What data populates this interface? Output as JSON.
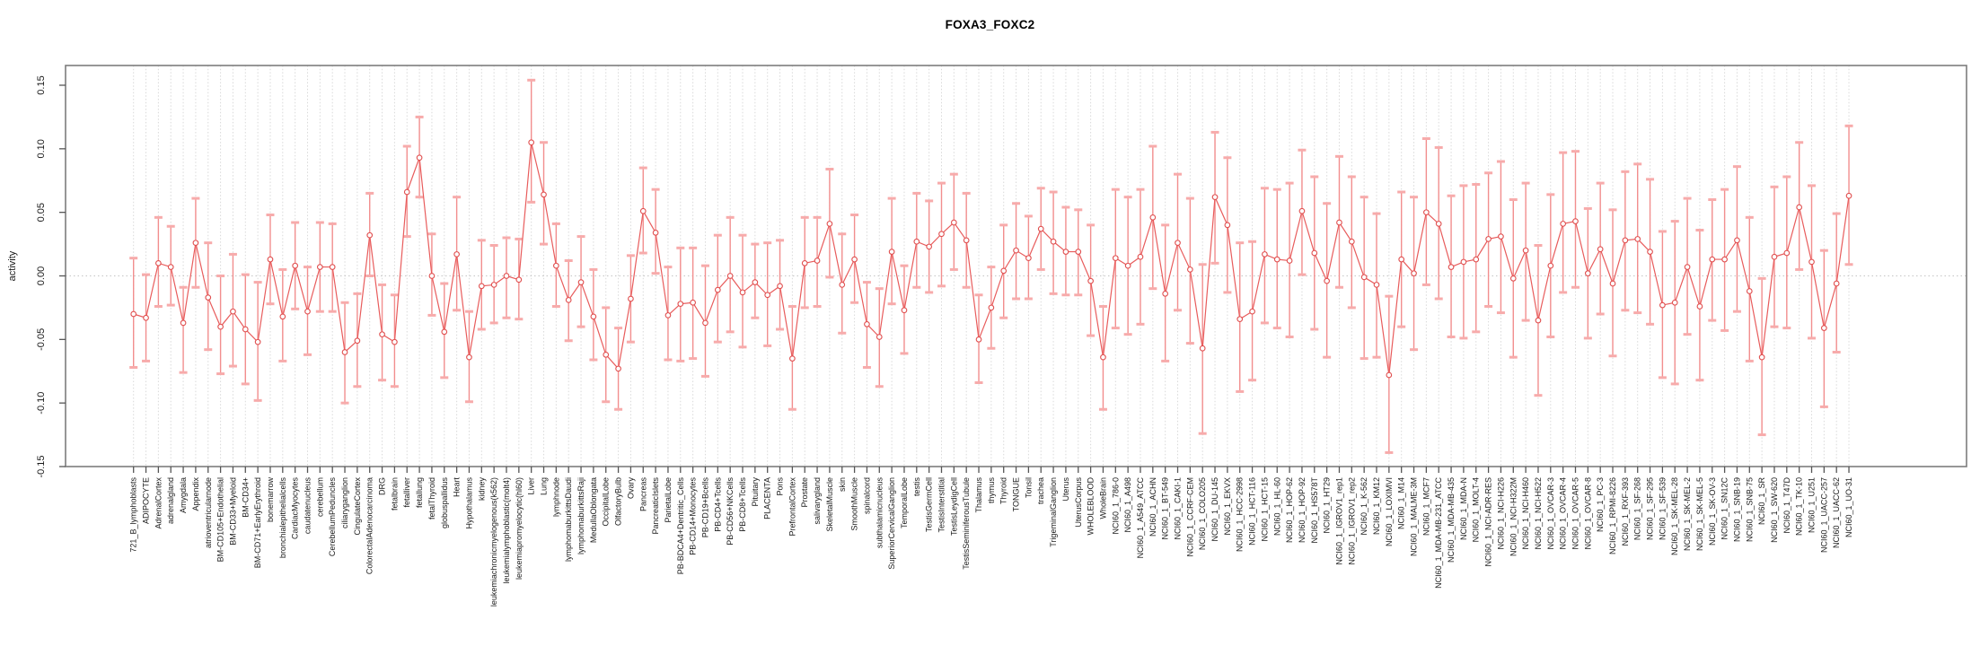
{
  "title": "FOXA3_FOXC2",
  "chart_data": {
    "type": "line",
    "title": "FOXA3_FOXC2",
    "xlabel": "",
    "ylabel": "activity",
    "ylim": [
      -0.15,
      0.165
    ],
    "grid": "vertical-dashed-per-category, dotted-zero-line",
    "legend": "none",
    "marker": "open-circle",
    "error_bars": true,
    "ytick_labels": [
      "0.15",
      "0.10",
      "0.05",
      "0.00",
      "-0.05",
      "-0.10",
      "-0.15"
    ],
    "colors": {
      "series": "#e85c5c",
      "marker": "#e04f4f",
      "error_stem": "#f28e8e",
      "error_cap": "#f7abab",
      "grid": "#d9d9d9",
      "zero_line": "#c4c4c4",
      "box": "#7d7d7d",
      "tick": "#555555"
    },
    "categories": [
      "721_B_lymphoblasts",
      "ADIPOCYTE",
      "AdrenalCortex",
      "adrenalgland",
      "Amygdala",
      "Appendix",
      "atrioventricularnode",
      "BM-CD105+Endothelial",
      "BM-CD33+Myeloid",
      "BM-CD34+",
      "BM-CD71+EarlyErythroid",
      "bonemarrow",
      "bronchialepithelialcells",
      "CardiacMyocytes",
      "caudatenucleus",
      "cerebellum",
      "CerebellumPeduncles",
      "ciliaryganglion",
      "CingulateCortex",
      "ColorectalAdenocarcinoma",
      "DRG",
      "fetalbrain",
      "fetalliver",
      "fetallung",
      "fetalThyroid",
      "globuspallidus",
      "Heart",
      "Hypothalamus",
      "kidney",
      "leukemiachronicmyelogenous(k562)",
      "leukemialymphoblastic(molt4)",
      "leukemiapromyelocytic(hl60)",
      "Liver",
      "Lung",
      "lymphnode",
      "lymphomaburkittsDaudi",
      "lymphomaburkittsRaji",
      "MedullaOblongata",
      "OccipitalLobe",
      "OlfactoryBulb",
      "Ovary",
      "Pancreas",
      "PancreaticIslets",
      "ParietalLobe",
      "PB-BDCA4+Dentritic_Cells",
      "PB-CD14+Monocytes",
      "PB-CD19+Bcells",
      "PB-CD4+Tcells",
      "PB-CD56+NKCells",
      "PB-CD8+Tcells",
      "Pituitary",
      "PLACENTA",
      "Pons",
      "PrefrontalCortex",
      "Prostate",
      "salivarygland",
      "SkeletalMuscle",
      "skin",
      "SmoothMuscle",
      "spinalcord",
      "subthalamicnucleus",
      "SuperiorCervicalGanglion",
      "TemporalLobe",
      "testis",
      "TestisGermCell",
      "TestisInterstitial",
      "TestisLeydigCell",
      "TestisSeminiferousTubule",
      "Thalamus",
      "thymus",
      "Thyroid",
      "TONGUE",
      "Tonsil",
      "trachea",
      "TrigeminalGanglion",
      "Uterus",
      "UterusCorpus",
      "WHOLEBLOOD",
      "WholeBrain",
      "NCI60_1_786-0",
      "NCI60_1_A498",
      "NCI60_1_A549_ATCC",
      "NCI60_1_ACHN",
      "NCI60_1_BT-549",
      "NCI60_1_CAKI-1",
      "NCI60_1_CCRF-CEM",
      "NCI60_1_COLO205",
      "NCI60_1_DU-145",
      "NCI60_1_EKVX",
      "NCI60_1_HCC-2998",
      "NCI60_1_HCT-116",
      "NCI60_1_HCT-15",
      "NCI60_1_HL-60",
      "NCI60_1_HOP-62",
      "NCI60_1_HOP-92",
      "NCI60_1_HS578T",
      "NCI60_1_HT29",
      "NCI60_1_IGROV1_rep1",
      "NCI60_1_IGROV1_rep2",
      "NCI60_1_K-562",
      "NCI60_1_KM12",
      "NCI60_1_LOXIMVI",
      "NCI60_1_M14",
      "NCI60_1_MALME-3M",
      "NCI60_1_MCF7",
      "NCI60_1_MDA-MB-231_ATCC",
      "NCI60_1_MDA-MB-435",
      "NCI60_1_MDA-N",
      "NCI60_1_MOLT-4",
      "NCI60_1_NCI-ADR-RES",
      "NCI60_1_NCI-H226",
      "NCI60_1_NCI-H322M",
      "NCI60_1_NCI-H460",
      "NCI60_1_NCI-H522",
      "NCI60_1_OVCAR-3",
      "NCI60_1_OVCAR-4",
      "NCI60_1_OVCAR-5",
      "NCI60_1_OVCAR-8",
      "NCI60_1_PC-3",
      "NCI60_1_RPMI-8226",
      "NCI60_1_RXF-393",
      "NCI60_1_SF-268",
      "NCI60_1_SF-295",
      "NCI60_1_SF-539",
      "NCI60_1_SK-MEL-28",
      "NCI60_1_SK-MEL-2",
      "NCI60_1_SK-MEL-5",
      "NCI60_1_SK-OV-3",
      "NCI60_1_SN12C",
      "NCI60_1_SNB-19",
      "NCI60_1_SNB-75",
      "NCI60_1_SR",
      "NCI60_1_SW-620",
      "NCI60_1_T47D",
      "NCI60_1_TK-10",
      "NCI60_1_U251",
      "NCI60_1_UACC-257",
      "NCI60_1_UACC-62",
      "NCI60_1_UO-31"
    ],
    "series": [
      {
        "name": "activity",
        "values": [
          -0.03,
          -0.033,
          0.01,
          0.007,
          -0.037,
          0.026,
          -0.017,
          -0.04,
          -0.028,
          -0.042,
          -0.052,
          0.013,
          -0.032,
          0.008,
          -0.028,
          0.007,
          0.007,
          -0.06,
          -0.051,
          0.032,
          -0.046,
          -0.052,
          0.066,
          0.093,
          0.0,
          -0.044,
          0.017,
          -0.064,
          -0.008,
          -0.007,
          0.0,
          -0.003,
          0.105,
          0.064,
          0.008,
          -0.019,
          -0.005,
          -0.032,
          -0.062,
          -0.073,
          -0.018,
          0.051,
          0.034,
          -0.031,
          -0.022,
          -0.021,
          -0.037,
          -0.011,
          0.0,
          -0.013,
          -0.005,
          -0.015,
          -0.008,
          -0.065,
          0.01,
          0.012,
          0.041,
          -0.007,
          0.013,
          -0.038,
          -0.048,
          0.019,
          -0.027,
          0.027,
          0.023,
          0.033,
          0.042,
          0.028,
          -0.05,
          -0.025,
          0.004,
          0.02,
          0.014,
          0.037,
          0.027,
          0.019,
          0.019,
          -0.004,
          -0.064,
          0.014,
          0.008,
          0.015,
          0.046,
          -0.014,
          0.026,
          0.005,
          -0.057,
          0.062,
          0.04,
          -0.034,
          -0.028,
          0.017,
          0.013,
          0.012,
          0.051,
          0.018,
          -0.004,
          0.042,
          0.027,
          -0.001,
          -0.007,
          -0.078,
          0.013,
          0.002,
          0.05,
          0.041,
          0.007,
          0.011,
          0.013,
          0.029,
          0.031,
          -0.002,
          0.02,
          -0.035,
          0.008,
          0.041,
          0.043,
          0.002,
          0.021,
          -0.006,
          0.028,
          0.029,
          0.019,
          -0.023,
          -0.021,
          0.007,
          -0.024,
          0.013,
          0.013,
          0.028,
          -0.012,
          -0.064,
          0.015,
          0.018,
          0.054,
          0.011,
          -0.041,
          -0.006,
          0.063
        ],
        "error_high": [
          0.014,
          0.001,
          0.046,
          0.039,
          -0.009,
          0.061,
          0.026,
          0.0,
          0.017,
          0.001,
          -0.005,
          0.048,
          0.005,
          0.042,
          0.007,
          0.042,
          0.041,
          -0.021,
          -0.014,
          0.065,
          -0.007,
          -0.015,
          0.102,
          0.125,
          0.033,
          -0.006,
          0.062,
          -0.028,
          0.028,
          0.024,
          0.03,
          0.029,
          0.154,
          0.105,
          0.041,
          0.012,
          0.031,
          0.005,
          -0.025,
          -0.041,
          0.016,
          0.085,
          0.068,
          0.007,
          0.022,
          0.022,
          0.008,
          0.032,
          0.046,
          0.032,
          0.025,
          0.026,
          0.028,
          -0.024,
          0.046,
          0.046,
          0.084,
          0.033,
          0.048,
          -0.005,
          -0.01,
          0.061,
          0.008,
          0.065,
          0.059,
          0.073,
          0.08,
          0.065,
          -0.015,
          0.007,
          0.04,
          0.057,
          0.047,
          0.069,
          0.066,
          0.054,
          0.052,
          0.04,
          -0.024,
          0.068,
          0.062,
          0.068,
          0.102,
          0.04,
          0.08,
          0.061,
          0.009,
          0.113,
          0.093,
          0.026,
          0.027,
          0.069,
          0.068,
          0.073,
          0.099,
          0.078,
          0.057,
          0.094,
          0.078,
          0.062,
          0.049,
          -0.016,
          0.066,
          0.062,
          0.108,
          0.101,
          0.063,
          0.071,
          0.072,
          0.081,
          0.09,
          0.06,
          0.073,
          0.024,
          0.064,
          0.097,
          0.098,
          0.053,
          0.073,
          0.052,
          0.082,
          0.088,
          0.076,
          0.035,
          0.043,
          0.061,
          0.036,
          0.06,
          0.068,
          0.086,
          0.046,
          -0.002,
          0.07,
          0.078,
          0.105,
          0.071,
          0.02,
          0.049,
          0.118
        ],
        "error_low": [
          -0.072,
          -0.067,
          -0.024,
          -0.023,
          -0.076,
          -0.009,
          -0.058,
          -0.077,
          -0.071,
          -0.085,
          -0.098,
          -0.022,
          -0.067,
          -0.026,
          -0.062,
          -0.028,
          -0.028,
          -0.1,
          -0.087,
          0.0,
          -0.082,
          -0.087,
          0.031,
          0.062,
          -0.031,
          -0.08,
          -0.027,
          -0.099,
          -0.042,
          -0.037,
          -0.033,
          -0.034,
          0.058,
          0.025,
          -0.024,
          -0.051,
          -0.04,
          -0.066,
          -0.099,
          -0.105,
          -0.052,
          0.018,
          0.002,
          -0.066,
          -0.067,
          -0.065,
          -0.079,
          -0.052,
          -0.044,
          -0.056,
          -0.033,
          -0.055,
          -0.042,
          -0.105,
          -0.025,
          -0.024,
          -0.001,
          -0.045,
          -0.021,
          -0.072,
          -0.087,
          -0.022,
          -0.061,
          -0.009,
          -0.013,
          -0.008,
          0.005,
          -0.009,
          -0.084,
          -0.057,
          -0.033,
          -0.018,
          -0.018,
          0.005,
          -0.014,
          -0.015,
          -0.015,
          -0.047,
          -0.105,
          -0.041,
          -0.046,
          -0.038,
          -0.01,
          -0.067,
          -0.027,
          -0.053,
          -0.124,
          0.01,
          -0.013,
          -0.091,
          -0.082,
          -0.037,
          -0.041,
          -0.048,
          0.001,
          -0.042,
          -0.064,
          -0.009,
          -0.025,
          -0.065,
          -0.064,
          -0.139,
          -0.04,
          -0.058,
          -0.007,
          -0.018,
          -0.048,
          -0.049,
          -0.044,
          -0.024,
          -0.029,
          -0.064,
          -0.035,
          -0.094,
          -0.048,
          -0.013,
          -0.009,
          -0.049,
          -0.03,
          -0.063,
          -0.027,
          -0.029,
          -0.038,
          -0.08,
          -0.085,
          -0.046,
          -0.082,
          -0.035,
          -0.043,
          -0.028,
          -0.067,
          -0.125,
          -0.04,
          -0.041,
          0.005,
          -0.049,
          -0.103,
          -0.06,
          0.009
        ]
      }
    ]
  }
}
